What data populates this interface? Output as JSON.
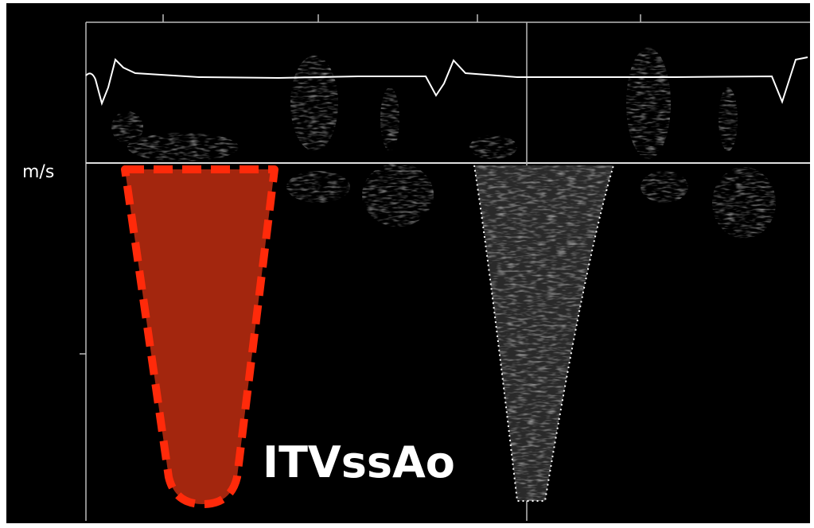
{
  "axis_label": "m/s",
  "annotation": "ITVssAo"
}
